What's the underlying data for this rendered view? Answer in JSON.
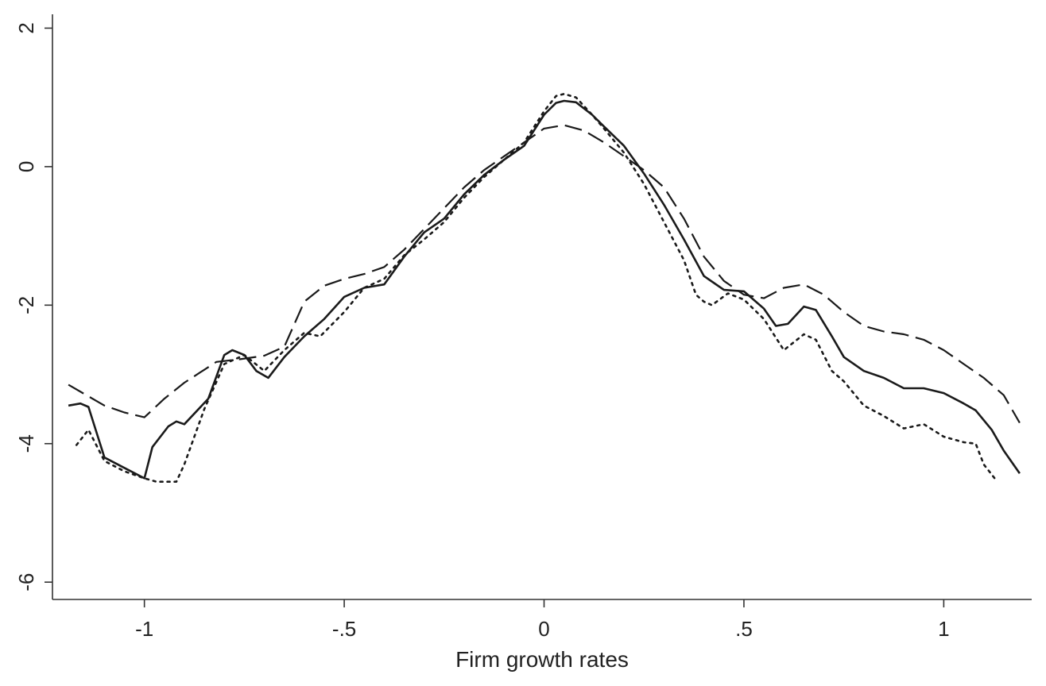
{
  "chart_data": {
    "type": "line",
    "title": "",
    "xlabel": "Firm growth rates",
    "ylabel": "",
    "xlim": [
      -1.23,
      1.22
    ],
    "ylim": [
      -6.25,
      2.2
    ],
    "grid": false,
    "legend": "none",
    "x_ticks": [
      {
        "value": -1,
        "label": "-1"
      },
      {
        "value": -0.5,
        "label": "-.5"
      },
      {
        "value": 0,
        "label": "0"
      },
      {
        "value": 0.5,
        "label": ".5"
      },
      {
        "value": 1,
        "label": "1"
      }
    ],
    "y_ticks": [
      {
        "value": 2,
        "label": "2"
      },
      {
        "value": 0,
        "label": "0"
      },
      {
        "value": -2,
        "label": "-2"
      },
      {
        "value": -4,
        "label": "-4"
      },
      {
        "value": -6,
        "label": "-6"
      }
    ],
    "series": [
      {
        "style": "solid",
        "color": "#1a1a1a",
        "points": [
          [
            -1.19,
            -3.45
          ],
          [
            -1.16,
            -3.42
          ],
          [
            -1.14,
            -3.47
          ],
          [
            -1.1,
            -4.2
          ],
          [
            -1.05,
            -4.35
          ],
          [
            -1.0,
            -4.5
          ],
          [
            -0.98,
            -4.05
          ],
          [
            -0.94,
            -3.75
          ],
          [
            -0.92,
            -3.68
          ],
          [
            -0.9,
            -3.72
          ],
          [
            -0.84,
            -3.35
          ],
          [
            -0.8,
            -2.72
          ],
          [
            -0.78,
            -2.65
          ],
          [
            -0.75,
            -2.72
          ],
          [
            -0.72,
            -2.95
          ],
          [
            -0.69,
            -3.05
          ],
          [
            -0.65,
            -2.75
          ],
          [
            -0.6,
            -2.45
          ],
          [
            -0.55,
            -2.2
          ],
          [
            -0.5,
            -1.88
          ],
          [
            -0.45,
            -1.75
          ],
          [
            -0.4,
            -1.7
          ],
          [
            -0.35,
            -1.3
          ],
          [
            -0.3,
            -0.95
          ],
          [
            -0.25,
            -0.75
          ],
          [
            -0.2,
            -0.4
          ],
          [
            -0.15,
            -0.12
          ],
          [
            -0.1,
            0.1
          ],
          [
            -0.05,
            0.3
          ],
          [
            0.0,
            0.75
          ],
          [
            0.03,
            0.92
          ],
          [
            0.05,
            0.95
          ],
          [
            0.08,
            0.93
          ],
          [
            0.12,
            0.75
          ],
          [
            0.15,
            0.58
          ],
          [
            0.2,
            0.3
          ],
          [
            0.25,
            -0.1
          ],
          [
            0.3,
            -0.55
          ],
          [
            0.35,
            -1.05
          ],
          [
            0.4,
            -1.58
          ],
          [
            0.45,
            -1.78
          ],
          [
            0.5,
            -1.8
          ],
          [
            0.55,
            -2.05
          ],
          [
            0.58,
            -2.3
          ],
          [
            0.61,
            -2.27
          ],
          [
            0.65,
            -2.02
          ],
          [
            0.68,
            -2.07
          ],
          [
            0.72,
            -2.45
          ],
          [
            0.75,
            -2.75
          ],
          [
            0.8,
            -2.95
          ],
          [
            0.85,
            -3.05
          ],
          [
            0.9,
            -3.2
          ],
          [
            0.95,
            -3.2
          ],
          [
            1.0,
            -3.27
          ],
          [
            1.05,
            -3.42
          ],
          [
            1.08,
            -3.52
          ],
          [
            1.12,
            -3.8
          ],
          [
            1.15,
            -4.1
          ],
          [
            1.19,
            -4.43
          ]
        ]
      },
      {
        "style": "dashed",
        "color": "#1a1a1a",
        "points": [
          [
            -1.19,
            -3.15
          ],
          [
            -1.1,
            -3.45
          ],
          [
            -1.05,
            -3.55
          ],
          [
            -1.0,
            -3.62
          ],
          [
            -0.95,
            -3.35
          ],
          [
            -0.9,
            -3.12
          ],
          [
            -0.82,
            -2.82
          ],
          [
            -0.76,
            -2.78
          ],
          [
            -0.7,
            -2.73
          ],
          [
            -0.65,
            -2.6
          ],
          [
            -0.6,
            -1.95
          ],
          [
            -0.55,
            -1.72
          ],
          [
            -0.5,
            -1.62
          ],
          [
            -0.45,
            -1.55
          ],
          [
            -0.4,
            -1.45
          ],
          [
            -0.35,
            -1.2
          ],
          [
            -0.3,
            -0.9
          ],
          [
            -0.25,
            -0.6
          ],
          [
            -0.2,
            -0.3
          ],
          [
            -0.15,
            -0.05
          ],
          [
            -0.1,
            0.15
          ],
          [
            -0.05,
            0.35
          ],
          [
            0.0,
            0.55
          ],
          [
            0.05,
            0.6
          ],
          [
            0.1,
            0.52
          ],
          [
            0.15,
            0.35
          ],
          [
            0.2,
            0.15
          ],
          [
            0.25,
            -0.05
          ],
          [
            0.3,
            -0.3
          ],
          [
            0.35,
            -0.75
          ],
          [
            0.4,
            -1.3
          ],
          [
            0.45,
            -1.65
          ],
          [
            0.5,
            -1.85
          ],
          [
            0.55,
            -1.9
          ],
          [
            0.6,
            -1.75
          ],
          [
            0.65,
            -1.7
          ],
          [
            0.7,
            -1.85
          ],
          [
            0.75,
            -2.1
          ],
          [
            0.8,
            -2.3
          ],
          [
            0.85,
            -2.38
          ],
          [
            0.9,
            -2.42
          ],
          [
            0.95,
            -2.5
          ],
          [
            1.0,
            -2.65
          ],
          [
            1.05,
            -2.85
          ],
          [
            1.1,
            -3.05
          ],
          [
            1.15,
            -3.3
          ],
          [
            1.19,
            -3.7
          ]
        ]
      },
      {
        "style": "dotted",
        "color": "#1a1a1a",
        "points": [
          [
            -1.17,
            -4.02
          ],
          [
            -1.14,
            -3.8
          ],
          [
            -1.1,
            -4.25
          ],
          [
            -1.05,
            -4.4
          ],
          [
            -1.0,
            -4.5
          ],
          [
            -0.97,
            -4.55
          ],
          [
            -0.92,
            -4.55
          ],
          [
            -0.9,
            -4.3
          ],
          [
            -0.85,
            -3.5
          ],
          [
            -0.8,
            -2.85
          ],
          [
            -0.75,
            -2.72
          ],
          [
            -0.7,
            -2.95
          ],
          [
            -0.65,
            -2.65
          ],
          [
            -0.6,
            -2.4
          ],
          [
            -0.56,
            -2.45
          ],
          [
            -0.5,
            -2.1
          ],
          [
            -0.45,
            -1.75
          ],
          [
            -0.4,
            -1.62
          ],
          [
            -0.35,
            -1.28
          ],
          [
            -0.3,
            -1.05
          ],
          [
            -0.25,
            -0.8
          ],
          [
            -0.2,
            -0.45
          ],
          [
            -0.15,
            -0.15
          ],
          [
            -0.1,
            0.1
          ],
          [
            -0.05,
            0.35
          ],
          [
            0.0,
            0.8
          ],
          [
            0.03,
            1.02
          ],
          [
            0.05,
            1.05
          ],
          [
            0.08,
            1.0
          ],
          [
            0.12,
            0.75
          ],
          [
            0.15,
            0.55
          ],
          [
            0.2,
            0.2
          ],
          [
            0.25,
            -0.25
          ],
          [
            0.3,
            -0.8
          ],
          [
            0.35,
            -1.35
          ],
          [
            0.38,
            -1.85
          ],
          [
            0.4,
            -1.95
          ],
          [
            0.42,
            -2.0
          ],
          [
            0.46,
            -1.83
          ],
          [
            0.5,
            -1.92
          ],
          [
            0.55,
            -2.2
          ],
          [
            0.6,
            -2.65
          ],
          [
            0.65,
            -2.42
          ],
          [
            0.68,
            -2.5
          ],
          [
            0.72,
            -2.95
          ],
          [
            0.75,
            -3.1
          ],
          [
            0.8,
            -3.45
          ],
          [
            0.85,
            -3.6
          ],
          [
            0.9,
            -3.78
          ],
          [
            0.95,
            -3.72
          ],
          [
            1.0,
            -3.9
          ],
          [
            1.05,
            -3.98
          ],
          [
            1.08,
            -4.0
          ],
          [
            1.1,
            -4.3
          ],
          [
            1.13,
            -4.52
          ]
        ]
      }
    ]
  }
}
